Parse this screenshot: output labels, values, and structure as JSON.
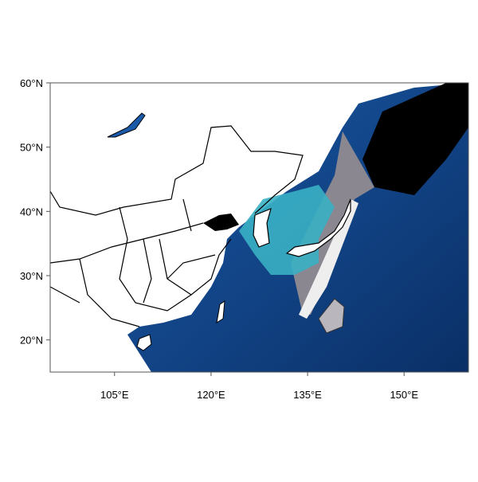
{
  "map": {
    "extent": {
      "lon": [
        95,
        160
      ],
      "lat": [
        15,
        60
      ]
    },
    "projection": "cylindrical equidistant",
    "lon_ticks": [
      {
        "value": 105,
        "label": "105°E"
      },
      {
        "value": 120,
        "label": "120°E"
      },
      {
        "value": 135,
        "label": "135°E"
      },
      {
        "value": 150,
        "label": "150°E"
      }
    ],
    "lat_ticks": [
      {
        "value": 20,
        "label": "20°N"
      },
      {
        "value": 30,
        "label": "30°N"
      },
      {
        "value": 40,
        "label": "40°N"
      },
      {
        "value": 50,
        "label": "50°N"
      },
      {
        "value": 60,
        "label": "60°N"
      }
    ],
    "colors": {
      "land": "#ffffff",
      "ocean": "#0d4a8f",
      "ocean_dark": "#0a2f66",
      "overlay_teal": "#3ab0c4",
      "overlay_gray": "#8a8790",
      "overlay_black": "#000000",
      "border": "#000000"
    }
  }
}
